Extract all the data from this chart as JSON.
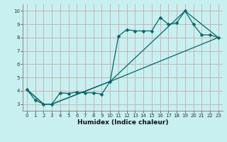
{
  "xlabel": "Humidex (Indice chaleur)",
  "bg_color": "#c8f0f0",
  "grid_color": "#c8b4b4",
  "line_color": "#006868",
  "xlim": [
    -0.5,
    23.5
  ],
  "ylim": [
    2.5,
    10.5
  ],
  "xticks": [
    0,
    1,
    2,
    3,
    4,
    5,
    6,
    7,
    8,
    9,
    10,
    11,
    12,
    13,
    14,
    15,
    16,
    17,
    18,
    19,
    20,
    21,
    22,
    23
  ],
  "yticks": [
    3,
    4,
    5,
    6,
    7,
    8,
    9,
    10
  ],
  "line1_x": [
    0,
    1,
    2,
    3,
    4,
    5,
    6,
    7,
    8,
    9,
    10,
    11,
    12,
    13,
    14,
    15,
    16,
    17,
    18,
    19,
    20,
    21,
    22,
    23
  ],
  "line1_y": [
    4.1,
    3.3,
    3.0,
    3.0,
    3.85,
    3.8,
    3.9,
    3.85,
    3.85,
    3.75,
    4.7,
    8.1,
    8.6,
    8.5,
    8.5,
    8.5,
    9.5,
    9.0,
    9.1,
    10.0,
    9.0,
    8.2,
    8.2,
    8.0
  ],
  "line2_x": [
    0,
    2,
    3,
    10,
    19,
    23
  ],
  "line2_y": [
    4.1,
    3.0,
    3.0,
    4.7,
    10.0,
    8.0
  ],
  "line3_x": [
    0,
    2,
    3,
    10,
    23
  ],
  "line3_y": [
    4.1,
    3.0,
    3.0,
    4.7,
    8.0
  ],
  "xlabel_fontsize": 6.5,
  "tick_fontsize": 5.0,
  "line_width": 0.9,
  "marker_size": 2.5
}
